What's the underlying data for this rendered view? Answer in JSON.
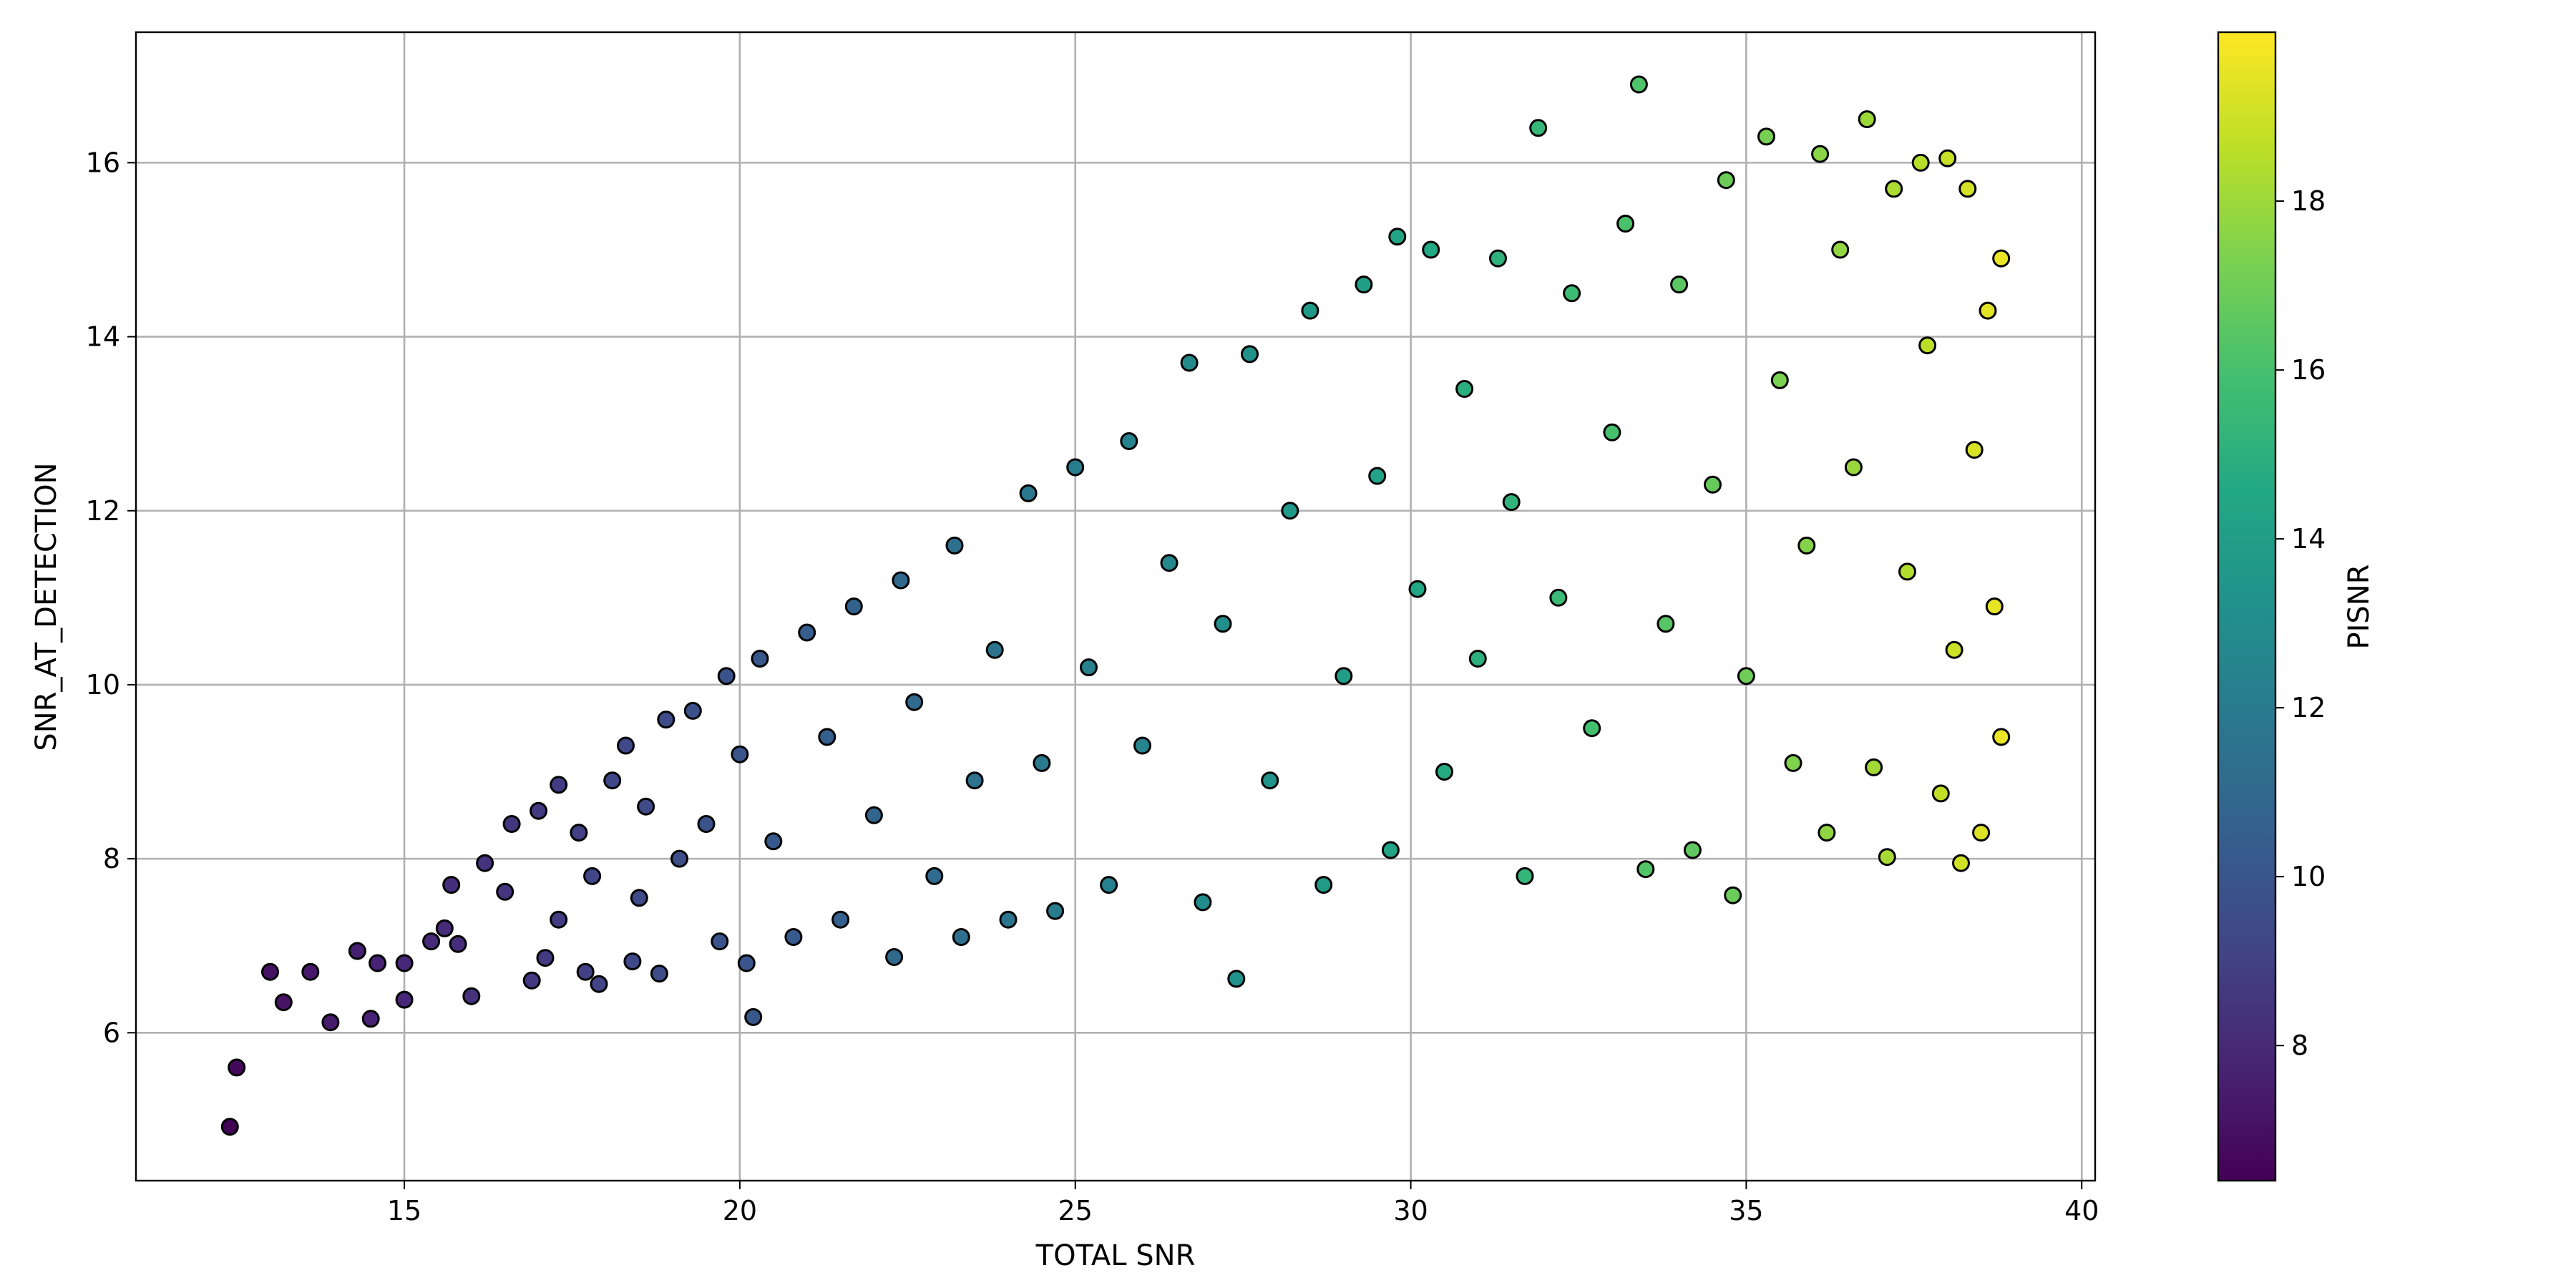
{
  "chart_data": {
    "type": "scatter",
    "title": "",
    "xlabel": "TOTAL SNR",
    "ylabel": "SNR_AT_DETECTION",
    "xlim": [
      11,
      40.2
    ],
    "ylim": [
      4.3,
      17.5
    ],
    "xticks": [
      15,
      20,
      25,
      30,
      35,
      40
    ],
    "yticks": [
      6,
      8,
      10,
      12,
      14,
      16
    ],
    "grid": true,
    "colorbar": {
      "label": "PISNR",
      "range": [
        6.4,
        20.0
      ],
      "ticks": [
        8,
        10,
        12,
        14,
        16,
        18
      ],
      "colormap": "viridis"
    },
    "points": [
      {
        "x": 12.4,
        "y": 4.92,
        "c": 6.5
      },
      {
        "x": 12.5,
        "y": 5.6,
        "c": 6.7
      },
      {
        "x": 13.0,
        "y": 6.7,
        "c": 7.0
      },
      {
        "x": 13.2,
        "y": 6.35,
        "c": 7.1
      },
      {
        "x": 13.6,
        "y": 6.7,
        "c": 7.3
      },
      {
        "x": 13.9,
        "y": 6.12,
        "c": 7.4
      },
      {
        "x": 14.3,
        "y": 6.94,
        "c": 7.6
      },
      {
        "x": 14.5,
        "y": 6.16,
        "c": 7.7
      },
      {
        "x": 14.6,
        "y": 6.8,
        "c": 7.7
      },
      {
        "x": 15.0,
        "y": 6.38,
        "c": 7.9
      },
      {
        "x": 15.0,
        "y": 6.8,
        "c": 7.9
      },
      {
        "x": 15.4,
        "y": 7.05,
        "c": 8.0
      },
      {
        "x": 15.6,
        "y": 7.2,
        "c": 8.1
      },
      {
        "x": 15.7,
        "y": 7.7,
        "c": 8.2
      },
      {
        "x": 15.8,
        "y": 7.02,
        "c": 8.2
      },
      {
        "x": 16.0,
        "y": 6.42,
        "c": 8.3
      },
      {
        "x": 16.2,
        "y": 7.95,
        "c": 8.4
      },
      {
        "x": 16.5,
        "y": 7.62,
        "c": 8.5
      },
      {
        "x": 16.6,
        "y": 8.4,
        "c": 8.5
      },
      {
        "x": 17.0,
        "y": 8.55,
        "c": 8.7
      },
      {
        "x": 16.9,
        "y": 6.6,
        "c": 8.6
      },
      {
        "x": 17.1,
        "y": 6.86,
        "c": 8.7
      },
      {
        "x": 17.3,
        "y": 7.3,
        "c": 8.8
      },
      {
        "x": 17.3,
        "y": 8.85,
        "c": 8.8
      },
      {
        "x": 17.6,
        "y": 8.3,
        "c": 9.0
      },
      {
        "x": 17.7,
        "y": 6.7,
        "c": 9.0
      },
      {
        "x": 17.8,
        "y": 7.8,
        "c": 9.1
      },
      {
        "x": 17.9,
        "y": 6.56,
        "c": 9.1
      },
      {
        "x": 18.1,
        "y": 8.9,
        "c": 9.2
      },
      {
        "x": 18.3,
        "y": 9.3,
        "c": 9.3
      },
      {
        "x": 18.4,
        "y": 6.82,
        "c": 9.3
      },
      {
        "x": 18.5,
        "y": 7.55,
        "c": 9.4
      },
      {
        "x": 18.6,
        "y": 8.6,
        "c": 9.4
      },
      {
        "x": 18.8,
        "y": 6.68,
        "c": 9.5
      },
      {
        "x": 18.9,
        "y": 9.6,
        "c": 9.5
      },
      {
        "x": 19.1,
        "y": 8.0,
        "c": 9.6
      },
      {
        "x": 19.3,
        "y": 9.7,
        "c": 9.7
      },
      {
        "x": 19.5,
        "y": 8.4,
        "c": 9.8
      },
      {
        "x": 19.7,
        "y": 7.05,
        "c": 9.9
      },
      {
        "x": 19.8,
        "y": 10.1,
        "c": 9.9
      },
      {
        "x": 20.0,
        "y": 9.2,
        "c": 10.0
      },
      {
        "x": 20.1,
        "y": 6.8,
        "c": 10.0
      },
      {
        "x": 20.2,
        "y": 6.18,
        "c": 10.1
      },
      {
        "x": 20.3,
        "y": 10.3,
        "c": 10.1
      },
      {
        "x": 20.5,
        "y": 8.2,
        "c": 10.2
      },
      {
        "x": 20.8,
        "y": 7.1,
        "c": 10.3
      },
      {
        "x": 21.0,
        "y": 10.6,
        "c": 10.4
      },
      {
        "x": 21.3,
        "y": 9.4,
        "c": 10.5
      },
      {
        "x": 21.5,
        "y": 7.3,
        "c": 10.6
      },
      {
        "x": 21.7,
        "y": 10.9,
        "c": 10.7
      },
      {
        "x": 22.0,
        "y": 8.5,
        "c": 10.8
      },
      {
        "x": 22.3,
        "y": 6.87,
        "c": 11.0
      },
      {
        "x": 22.4,
        "y": 11.2,
        "c": 11.0
      },
      {
        "x": 22.6,
        "y": 9.8,
        "c": 11.1
      },
      {
        "x": 22.9,
        "y": 7.8,
        "c": 11.2
      },
      {
        "x": 23.2,
        "y": 11.6,
        "c": 11.4
      },
      {
        "x": 23.3,
        "y": 7.1,
        "c": 11.4
      },
      {
        "x": 23.5,
        "y": 8.9,
        "c": 11.5
      },
      {
        "x": 23.8,
        "y": 10.4,
        "c": 11.6
      },
      {
        "x": 24.0,
        "y": 7.3,
        "c": 11.7
      },
      {
        "x": 24.3,
        "y": 12.2,
        "c": 11.8
      },
      {
        "x": 24.5,
        "y": 9.1,
        "c": 11.9
      },
      {
        "x": 24.7,
        "y": 7.4,
        "c": 12.0
      },
      {
        "x": 25.0,
        "y": 12.5,
        "c": 12.1
      },
      {
        "x": 25.2,
        "y": 10.2,
        "c": 12.2
      },
      {
        "x": 25.5,
        "y": 7.7,
        "c": 12.3
      },
      {
        "x": 25.8,
        "y": 12.8,
        "c": 12.4
      },
      {
        "x": 26.0,
        "y": 9.3,
        "c": 12.5
      },
      {
        "x": 26.4,
        "y": 11.4,
        "c": 12.7
      },
      {
        "x": 26.7,
        "y": 13.7,
        "c": 12.9
      },
      {
        "x": 26.9,
        "y": 7.5,
        "c": 12.9
      },
      {
        "x": 27.2,
        "y": 10.7,
        "c": 13.1
      },
      {
        "x": 27.4,
        "y": 6.62,
        "c": 13.2
      },
      {
        "x": 27.6,
        "y": 13.8,
        "c": 13.3
      },
      {
        "x": 27.9,
        "y": 8.9,
        "c": 13.4
      },
      {
        "x": 28.2,
        "y": 12.0,
        "c": 13.6
      },
      {
        "x": 28.5,
        "y": 14.3,
        "c": 13.7
      },
      {
        "x": 28.7,
        "y": 7.7,
        "c": 13.8
      },
      {
        "x": 29.0,
        "y": 10.1,
        "c": 13.9
      },
      {
        "x": 29.3,
        "y": 14.6,
        "c": 14.1
      },
      {
        "x": 29.5,
        "y": 12.4,
        "c": 14.2
      },
      {
        "x": 29.7,
        "y": 8.1,
        "c": 14.3
      },
      {
        "x": 29.8,
        "y": 15.15,
        "c": 14.4
      },
      {
        "x": 30.1,
        "y": 11.1,
        "c": 14.5
      },
      {
        "x": 30.3,
        "y": 15.0,
        "c": 14.6
      },
      {
        "x": 30.5,
        "y": 9.0,
        "c": 14.7
      },
      {
        "x": 30.8,
        "y": 13.4,
        "c": 14.9
      },
      {
        "x": 31.0,
        "y": 10.3,
        "c": 15.0
      },
      {
        "x": 31.3,
        "y": 14.9,
        "c": 15.1
      },
      {
        "x": 31.5,
        "y": 12.1,
        "c": 15.2
      },
      {
        "x": 31.7,
        "y": 7.8,
        "c": 15.3
      },
      {
        "x": 31.9,
        "y": 16.4,
        "c": 15.4
      },
      {
        "x": 32.2,
        "y": 11.0,
        "c": 15.6
      },
      {
        "x": 32.4,
        "y": 14.5,
        "c": 15.7
      },
      {
        "x": 32.7,
        "y": 9.5,
        "c": 15.9
      },
      {
        "x": 33.0,
        "y": 12.9,
        "c": 16.0
      },
      {
        "x": 33.2,
        "y": 15.3,
        "c": 16.1
      },
      {
        "x": 33.5,
        "y": 7.88,
        "c": 16.3
      },
      {
        "x": 33.4,
        "y": 16.9,
        "c": 16.2
      },
      {
        "x": 33.8,
        "y": 10.7,
        "c": 16.4
      },
      {
        "x": 34.0,
        "y": 14.6,
        "c": 16.5
      },
      {
        "x": 34.2,
        "y": 8.1,
        "c": 16.6
      },
      {
        "x": 34.5,
        "y": 12.3,
        "c": 16.8
      },
      {
        "x": 34.7,
        "y": 15.8,
        "c": 16.9
      },
      {
        "x": 34.8,
        "y": 7.58,
        "c": 16.9
      },
      {
        "x": 35.0,
        "y": 10.1,
        "c": 17.0
      },
      {
        "x": 35.3,
        "y": 16.3,
        "c": 17.2
      },
      {
        "x": 35.5,
        "y": 13.5,
        "c": 17.3
      },
      {
        "x": 35.7,
        "y": 9.1,
        "c": 17.4
      },
      {
        "x": 35.9,
        "y": 11.6,
        "c": 17.5
      },
      {
        "x": 36.1,
        "y": 16.1,
        "c": 17.6
      },
      {
        "x": 36.2,
        "y": 8.3,
        "c": 17.7
      },
      {
        "x": 36.4,
        "y": 15.0,
        "c": 17.8
      },
      {
        "x": 36.6,
        "y": 12.5,
        "c": 17.9
      },
      {
        "x": 36.8,
        "y": 16.5,
        "c": 18.0
      },
      {
        "x": 36.9,
        "y": 9.05,
        "c": 18.1
      },
      {
        "x": 37.1,
        "y": 8.02,
        "c": 18.2
      },
      {
        "x": 37.2,
        "y": 15.7,
        "c": 18.3
      },
      {
        "x": 37.4,
        "y": 11.3,
        "c": 18.4
      },
      {
        "x": 37.6,
        "y": 16.0,
        "c": 18.5
      },
      {
        "x": 37.7,
        "y": 13.9,
        "c": 18.6
      },
      {
        "x": 37.9,
        "y": 8.75,
        "c": 18.7
      },
      {
        "x": 38.0,
        "y": 16.05,
        "c": 18.8
      },
      {
        "x": 38.1,
        "y": 10.4,
        "c": 18.9
      },
      {
        "x": 38.2,
        "y": 7.95,
        "c": 19.0
      },
      {
        "x": 38.3,
        "y": 15.7,
        "c": 19.1
      },
      {
        "x": 38.4,
        "y": 12.7,
        "c": 19.2
      },
      {
        "x": 38.5,
        "y": 8.3,
        "c": 19.3
      },
      {
        "x": 38.6,
        "y": 14.3,
        "c": 19.4
      },
      {
        "x": 38.7,
        "y": 10.9,
        "c": 19.5
      },
      {
        "x": 38.8,
        "y": 14.9,
        "c": 19.6
      },
      {
        "x": 38.8,
        "y": 9.4,
        "c": 19.6
      }
    ]
  }
}
